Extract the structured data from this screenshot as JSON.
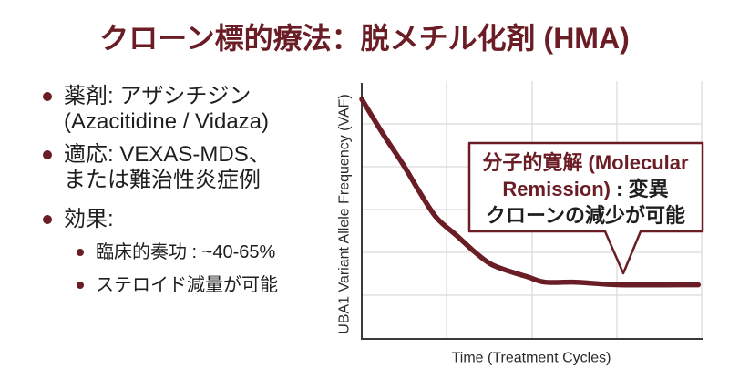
{
  "title": "クローン標的療法：脱メチル化剤 (HMA)",
  "bullets": [
    {
      "lines": [
        "薬剤: アザシチジン",
        "(Azacitidine / Vidaza)"
      ]
    },
    {
      "lines": [
        "適応: VEXAS-MDS、",
        "または難治性炎症例"
      ]
    },
    {
      "lines": [
        "効果:"
      ],
      "sub": [
        "臨床的奏功 : ~40-65%",
        "ステロイド減量が可能"
      ]
    }
  ],
  "colors": {
    "accent": "#6b1d26",
    "text": "#1e1e1e",
    "grid": "#d9d9d9",
    "axis": "#3a3a3a"
  },
  "chart_data": {
    "type": "line",
    "title": "",
    "xlabel": "Time (Treatment Cycles)",
    "ylabel": "UBA1 Variant Allele Frequency (VAF)",
    "xlim": [
      0,
      1
    ],
    "ylim": [
      0,
      1
    ],
    "grid": true,
    "legend": "none",
    "series": [
      {
        "x": [
          0,
          0.06,
          0.12,
          0.17,
          0.22,
          0.28,
          0.33,
          0.38,
          0.44,
          0.49,
          0.54,
          0.63,
          0.76,
          0.99
        ],
        "y": [
          0.93,
          0.8,
          0.68,
          0.57,
          0.47,
          0.4,
          0.34,
          0.29,
          0.26,
          0.24,
          0.22,
          0.22,
          0.21,
          0.21
        ]
      }
    ],
    "annotation": {
      "line1": "分子的寛解 (Molecular",
      "line2_highlight": "Remission)",
      "line2_rest": " : 変異",
      "line3": "クローンの減少が可能"
    }
  }
}
